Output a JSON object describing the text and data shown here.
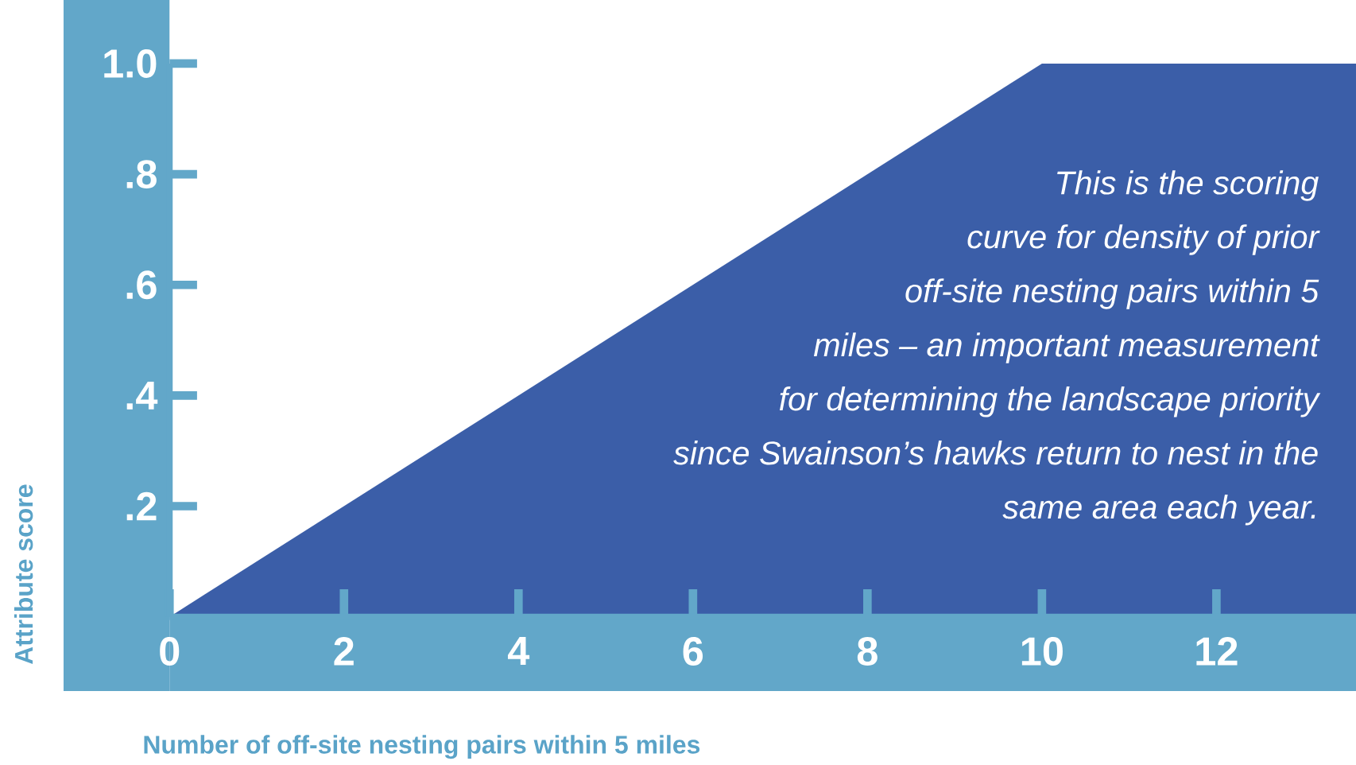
{
  "chart_data": {
    "type": "area",
    "x": [
      0,
      10,
      13.6
    ],
    "values": [
      0,
      1,
      1
    ],
    "color": "#3b5ea8",
    "xlim": [
      0,
      13.6
    ],
    "ylim": [
      0,
      1.0
    ],
    "xticks": [
      0,
      2,
      4,
      6,
      8,
      10,
      12
    ],
    "yticks": [
      {
        "value": 0.2,
        "label": ".2"
      },
      {
        "value": 0.4,
        "label": ".4"
      },
      {
        "value": 0.6,
        "label": ".6"
      },
      {
        "value": 0.8,
        "label": ".8"
      },
      {
        "value": 1.0,
        "label": "1.0"
      }
    ],
    "xlabel": "Number of off-site nesting pairs within 5 miles",
    "ylabel": "Attribute score",
    "annotations": [
      "This is the scoring",
      "curve for density of prior",
      "off-site nesting pairs within 5",
      "miles – an important measurement",
      "for determining the landscape priority",
      "since Swainson’s hawks return to nest in the",
      "same area each year."
    ]
  }
}
